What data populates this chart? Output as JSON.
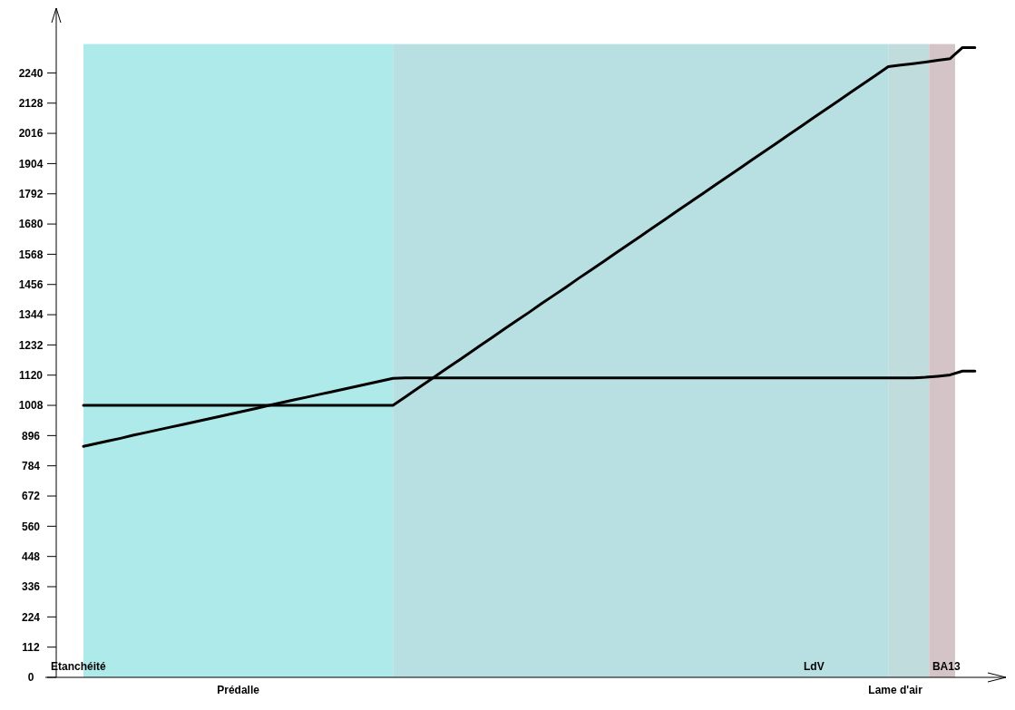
{
  "chart_data": {
    "type": "line",
    "ylim": [
      0,
      2480
    ],
    "categories": [
      null,
      null,
      null,
      null,
      null,
      null,
      null,
      null,
      null,
      null,
      null,
      null,
      null,
      null,
      null,
      null,
      null,
      null,
      null,
      null,
      null,
      null,
      null,
      null,
      null,
      null,
      null,
      null,
      null,
      null,
      null,
      null,
      null,
      null,
      null,
      null,
      null,
      null,
      null,
      null,
      null,
      null,
      null,
      null,
      null,
      null,
      null,
      null,
      null,
      null,
      null,
      null,
      null,
      null,
      null,
      null,
      null,
      null,
      null,
      null,
      null,
      null,
      null,
      null,
      null,
      null,
      null,
      null,
      null,
      null,
      null,
      null,
      null
    ],
    "yticks": [
      0,
      112,
      224,
      336,
      448,
      560,
      672,
      784,
      896,
      1008,
      1120,
      1232,
      1344,
      1456,
      1568,
      1680,
      1792,
      1904,
      2016,
      2128,
      2240
    ],
    "tick_labels": "y",
    "marker": "none",
    "line_style": "solid",
    "series": [
      {
        "color": "#000000",
        "values": [
          856,
          866,
          876,
          886,
          897,
          907,
          917,
          927,
          937,
          947,
          957,
          967,
          977,
          987,
          997,
          1008,
          1018,
          1028,
          1038,
          1048,
          1058,
          1068,
          1078,
          1088,
          1098,
          1108,
          1110,
          1110,
          1110,
          1110,
          1110,
          1110,
          1110,
          1110,
          1110,
          1110,
          1110,
          1110,
          1110,
          1110,
          1110,
          1110,
          1110,
          1110,
          1110,
          1110,
          1110,
          1110,
          1110,
          1110,
          1110,
          1110,
          1110,
          1110,
          1110,
          1110,
          1110,
          1110,
          1110,
          1110,
          1110,
          1110,
          1110,
          1110,
          1110,
          1110,
          1110,
          1110,
          1112,
          1116,
          1121,
          1135,
          1135
        ]
      },
      {
        "color": "#000000",
        "values": [
          1008,
          1008,
          1008,
          1008,
          1008,
          1008,
          1008,
          1008,
          1008,
          1008,
          1008,
          1008,
          1008,
          1008,
          1008,
          1008,
          1008,
          1008,
          1008,
          1008,
          1008,
          1008,
          1008,
          1008,
          1008,
          1008,
          1039,
          1071,
          1102,
          1134,
          1165,
          1196,
          1228,
          1259,
          1291,
          1322,
          1353,
          1385,
          1416,
          1447,
          1479,
          1510,
          1541,
          1573,
          1604,
          1635,
          1667,
          1698,
          1730,
          1761,
          1792,
          1824,
          1855,
          1886,
          1918,
          1949,
          1980,
          2012,
          2043,
          2075,
          2106,
          2137,
          2169,
          2200,
          2231,
          2263,
          2269,
          2274,
          2280,
          2287,
          2293,
          2334,
          2334
        ]
      }
    ],
    "annotations": [
      "Etanchéité",
      "Prédalle",
      "LdV",
      "Lame d'air",
      "BA13"
    ]
  }
}
